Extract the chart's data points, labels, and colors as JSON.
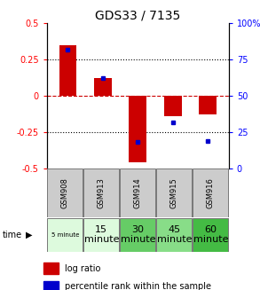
{
  "title": "GDS33 / 7135",
  "categories": [
    "GSM908",
    "GSM913",
    "GSM914",
    "GSM915",
    "GSM916"
  ],
  "log_ratios": [
    0.35,
    0.12,
    -0.46,
    -0.14,
    -0.13
  ],
  "percentile_ranks": [
    0.315,
    0.12,
    -0.32,
    -0.185,
    -0.31
  ],
  "bar_color": "#cc0000",
  "dot_color": "#0000cc",
  "ylim": [
    -0.5,
    0.5
  ],
  "yticks_left": [
    -0.5,
    -0.25,
    0.0,
    0.25,
    0.5
  ],
  "ytick_left_labels": [
    "-0.5",
    "-0.25",
    "0",
    "0.25",
    "0.5"
  ],
  "ytick_right_positions": [
    -0.5,
    -0.25,
    0.0,
    0.25,
    0.5
  ],
  "ytick_right_labels": [
    "0",
    "25",
    "50",
    "75",
    "100%"
  ],
  "time_labels": [
    "5 minute",
    "15\nminute",
    "30\nminute",
    "45\nminute",
    "60\nminute"
  ],
  "time_colors": [
    "#ddfadd",
    "#ddfadd",
    "#66cc66",
    "#88dd88",
    "#44bb44"
  ],
  "time_fontsizes": [
    5,
    8,
    8,
    8,
    8
  ],
  "gsm_bg": "#cccccc",
  "bar_width": 0.5,
  "title_fontsize": 10
}
